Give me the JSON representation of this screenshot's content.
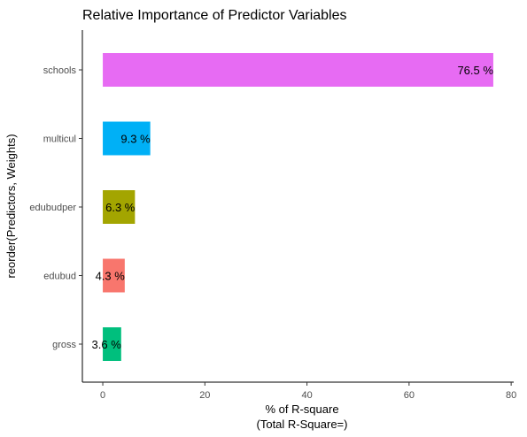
{
  "chart_data": {
    "type": "bar",
    "orientation": "horizontal",
    "title": "Relative Importance of Predictor Variables",
    "xlabel_line1": "% of R-square",
    "xlabel_line2": "(Total R-Square=)",
    "ylabel": "reorder(Predictors, Weights)",
    "categories": [
      "schools",
      "multicul",
      "edubudper",
      "edubud",
      "gross"
    ],
    "values": [
      76.5,
      9.3,
      6.3,
      4.3,
      3.6
    ],
    "labels": [
      "76.5 %",
      "9.3 %",
      "6.3 %",
      "4.3 %",
      "3.6 %"
    ],
    "colors": [
      "#E76BF3",
      "#00B0F6",
      "#A3A500",
      "#F8766D",
      "#00BF7D"
    ],
    "xticks": [
      "0",
      "20",
      "40",
      "60",
      "80"
    ],
    "xtick_values": [
      0,
      20,
      40,
      60,
      80
    ],
    "xlim": [
      -4,
      80.5
    ],
    "grid": false,
    "legend": "none"
  }
}
